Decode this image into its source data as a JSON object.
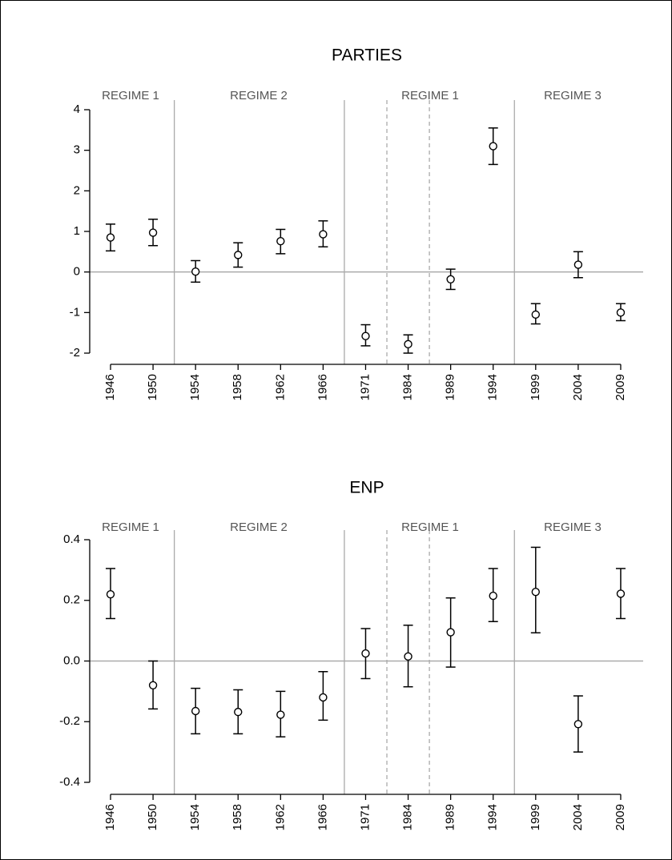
{
  "chart_data": [
    {
      "type": "errorbar",
      "title": "PARTIES",
      "categories": [
        "1946",
        "1950",
        "1954",
        "1958",
        "1962",
        "1966",
        "1971",
        "1984",
        "1989",
        "1994",
        "1999",
        "2004",
        "2009"
      ],
      "values": [
        0.85,
        0.97,
        0.01,
        0.42,
        0.76,
        0.93,
        -1.58,
        -1.78,
        -0.18,
        3.1,
        -1.05,
        0.18,
        -1.0
      ],
      "lower": [
        0.52,
        0.65,
        -0.25,
        0.12,
        0.45,
        0.62,
        -1.82,
        -2.0,
        -0.43,
        2.65,
        -1.28,
        -0.14,
        -1.2
      ],
      "upper": [
        1.18,
        1.3,
        0.28,
        0.72,
        1.05,
        1.26,
        -1.3,
        -1.55,
        0.07,
        3.55,
        -0.78,
        0.5,
        -0.78
      ],
      "ylim": [
        -2,
        4
      ],
      "yticks": [
        -2,
        -1,
        0,
        1,
        2,
        3,
        4
      ],
      "reference_line": 0,
      "regimes": [
        "REGIME 1",
        "REGIME 2",
        "REGIME 1",
        "REGIME 3"
      ]
    },
    {
      "type": "errorbar",
      "title": "ENP",
      "categories": [
        "1946",
        "1950",
        "1954",
        "1958",
        "1962",
        "1966",
        "1971",
        "1984",
        "1989",
        "1994",
        "1999",
        "2004",
        "2009"
      ],
      "values": [
        0.22,
        -0.08,
        -0.165,
        -0.168,
        -0.177,
        -0.12,
        0.025,
        0.015,
        0.095,
        0.215,
        0.228,
        -0.208,
        0.222
      ],
      "lower": [
        0.14,
        -0.158,
        -0.24,
        -0.24,
        -0.25,
        -0.195,
        -0.058,
        -0.085,
        -0.02,
        0.13,
        0.093,
        -0.3,
        0.14
      ],
      "upper": [
        0.305,
        0.0,
        -0.09,
        -0.095,
        -0.1,
        -0.035,
        0.107,
        0.118,
        0.208,
        0.305,
        0.375,
        -0.115,
        0.305
      ],
      "ylim": [
        -0.4,
        0.4
      ],
      "yticks": [
        -0.4,
        -0.2,
        {
          "value": 0,
          "label": "0.0"
        },
        0.2,
        0.4
      ],
      "reference_line": 0,
      "regimes": [
        "REGIME 1",
        "REGIME 2",
        "REGIME 1",
        "REGIME 3"
      ]
    }
  ]
}
